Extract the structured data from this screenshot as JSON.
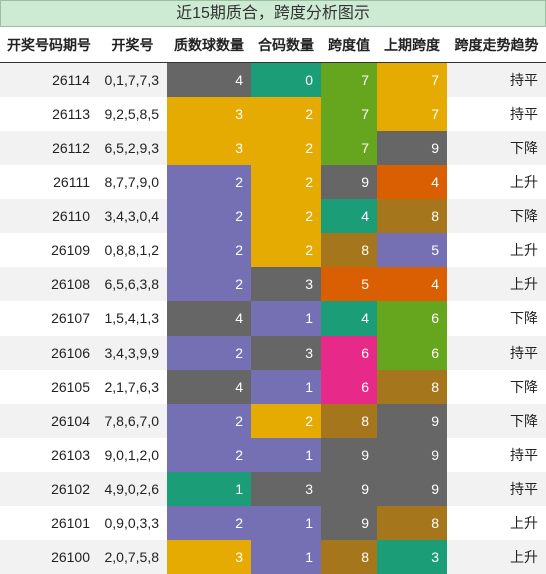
{
  "header": {
    "title": "近15期质合，跨度分析图示"
  },
  "table": {
    "columns": [
      "开奖号码期号",
      "开奖号",
      "质数球数量",
      "合码数量",
      "跨度值",
      "上期跨度",
      "跨度走势趋势"
    ],
    "rows": [
      [
        "26114",
        "0,1,7,7,3",
        "4",
        "0",
        "7",
        "7",
        "持平"
      ],
      [
        "26113",
        "9,2,5,8,5",
        "3",
        "2",
        "7",
        "7",
        "持平"
      ],
      [
        "26112",
        "6,5,2,9,3",
        "3",
        "2",
        "7",
        "9",
        "下降"
      ],
      [
        "26111",
        "8,7,7,9,0",
        "2",
        "2",
        "9",
        "4",
        "上升"
      ],
      [
        "26110",
        "3,4,3,0,4",
        "2",
        "2",
        "4",
        "8",
        "下降"
      ],
      [
        "26109",
        "0,8,8,1,2",
        "2",
        "2",
        "8",
        "5",
        "上升"
      ],
      [
        "26108",
        "6,5,6,3,8",
        "2",
        "3",
        "5",
        "4",
        "上升"
      ],
      [
        "26107",
        "1,5,4,1,3",
        "4",
        "1",
        "4",
        "6",
        "下降"
      ],
      [
        "26106",
        "3,4,3,9,9",
        "2",
        "3",
        "6",
        "6",
        "持平"
      ],
      [
        "26105",
        "2,1,7,6,3",
        "4",
        "1",
        "6",
        "8",
        "下降"
      ],
      [
        "26104",
        "7,8,6,7,0",
        "2",
        "2",
        "8",
        "9",
        "下降"
      ],
      [
        "26103",
        "9,0,1,2,0",
        "2",
        "1",
        "9",
        "9",
        "持平"
      ],
      [
        "26102",
        "4,9,0,2,6",
        "1",
        "3",
        "9",
        "9",
        "持平"
      ],
      [
        "26101",
        "0,9,0,3,3",
        "2",
        "1",
        "9",
        "8",
        "上升"
      ],
      [
        "26100",
        "2,0,7,5,8",
        "3",
        "1",
        "8",
        "3",
        "上升"
      ]
    ],
    "cell_colors": [
      [
        "#666666",
        "#1b9e77",
        "#66a61e",
        "#e6ab02"
      ],
      [
        "#e6ab02",
        "#e6ab02",
        "#66a61e",
        "#e6ab02"
      ],
      [
        "#e6ab02",
        "#e6ab02",
        "#66a61e",
        "#666666"
      ],
      [
        "#7570b3",
        "#e6ab02",
        "#666666",
        "#d95f02"
      ],
      [
        "#7570b3",
        "#e6ab02",
        "#1b9e77",
        "#a6761d"
      ],
      [
        "#7570b3",
        "#e6ab02",
        "#a6761d",
        "#7570b3"
      ],
      [
        "#7570b3",
        "#666666",
        "#d95f02",
        "#d95f02"
      ],
      [
        "#666666",
        "#7570b3",
        "#1b9e77",
        "#66a61e"
      ],
      [
        "#7570b3",
        "#666666",
        "#e7298a",
        "#66a61e"
      ],
      [
        "#666666",
        "#7570b3",
        "#e7298a",
        "#a6761d"
      ],
      [
        "#7570b3",
        "#e6ab02",
        "#a6761d",
        "#666666"
      ],
      [
        "#7570b3",
        "#7570b3",
        "#666666",
        "#666666"
      ],
      [
        "#1b9e77",
        "#666666",
        "#666666",
        "#666666"
      ],
      [
        "#7570b3",
        "#7570b3",
        "#666666",
        "#a6761d"
      ],
      [
        "#e6ab02",
        "#7570b3",
        "#a6761d",
        "#1b9e77"
      ]
    ]
  }
}
